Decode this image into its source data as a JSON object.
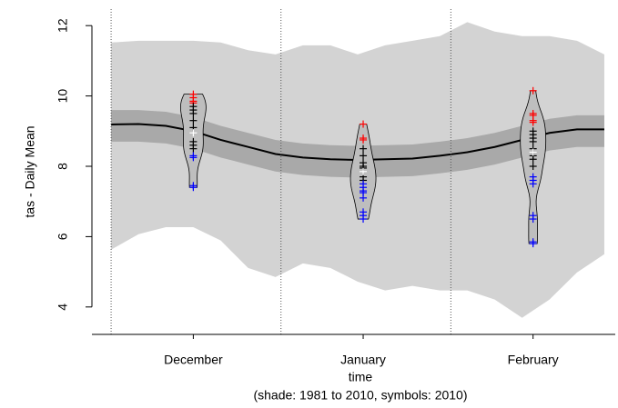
{
  "chart_data": {
    "type": "ensemble",
    "ylabel": "tas - Daily Mean",
    "xlabel": "time",
    "subtitle": "(shade: 1981 to 2010, symbols: 2010)",
    "xlim": [
      -2.5,
      93
    ],
    "ylim": [
      3.22,
      12.47
    ],
    "yticks": [
      4,
      6,
      8,
      10,
      12
    ],
    "xticks": [
      {
        "value": 16,
        "label": "December"
      },
      {
        "value": 47,
        "label": "January"
      },
      {
        "value": 78,
        "label": "February"
      }
    ],
    "separators": [
      1,
      32,
      63
    ],
    "x": [
      1,
      6,
      11,
      16,
      21,
      26,
      31,
      36,
      41,
      46,
      51,
      56,
      61,
      66,
      71,
      76,
      81,
      86,
      91
    ],
    "outer_band": {
      "color": "#d3d3d3",
      "upper": [
        11.52,
        11.57,
        11.57,
        11.57,
        11.52,
        11.3,
        11.18,
        11.44,
        11.44,
        11.18,
        11.44,
        11.57,
        11.7,
        12.1,
        11.83,
        11.7,
        11.7,
        11.57,
        11.18
      ],
      "lower": [
        5.63,
        6.07,
        6.27,
        6.27,
        5.89,
        5.11,
        4.85,
        5.24,
        5.11,
        4.72,
        4.47,
        4.6,
        4.47,
        4.47,
        4.21,
        3.69,
        4.21,
        4.98,
        5.5
      ]
    },
    "inner_band": {
      "color": "#a9a9a9",
      "upper": [
        9.6,
        9.6,
        9.55,
        9.4,
        9.15,
        8.95,
        8.75,
        8.65,
        8.6,
        8.58,
        8.6,
        8.62,
        8.7,
        8.8,
        8.95,
        9.15,
        9.35,
        9.45,
        9.45
      ],
      "lower": [
        8.7,
        8.7,
        8.65,
        8.5,
        8.25,
        8.05,
        7.85,
        7.75,
        7.7,
        7.68,
        7.7,
        7.72,
        7.8,
        7.9,
        8.05,
        8.25,
        8.45,
        8.55,
        8.55
      ]
    },
    "mean": {
      "color": "#000000",
      "values": [
        9.19,
        9.2,
        9.15,
        9.0,
        8.75,
        8.55,
        8.35,
        8.25,
        8.2,
        8.18,
        8.2,
        8.22,
        8.3,
        8.4,
        8.55,
        8.75,
        8.95,
        9.05,
        9.05
      ]
    },
    "violins": [
      {
        "x": 16,
        "groups": [
          {
            "color": "#ff0000",
            "values": [
              10.05,
              9.95,
              9.85,
              9.8
            ]
          },
          {
            "color": "#000000",
            "values": [
              9.7,
              9.6,
              9.5,
              9.3,
              9.1,
              8.7,
              8.6,
              8.5
            ]
          },
          {
            "color": "#ffffff",
            "values": [
              8.95
            ]
          },
          {
            "color": "#0000ff",
            "values": [
              8.3,
              8.25,
              7.45,
              7.4
            ]
          }
        ]
      },
      {
        "x": 47,
        "groups": [
          {
            "color": "#ff0000",
            "values": [
              9.2,
              8.8,
              8.75
            ]
          },
          {
            "color": "#000000",
            "values": [
              8.5,
              8.3,
              8.1,
              8.0,
              7.95,
              7.7,
              7.6
            ]
          },
          {
            "color": "#ffffff",
            "values": [
              7.85
            ]
          },
          {
            "color": "#0000ff",
            "values": [
              7.5,
              7.4,
              7.3,
              7.25,
              7.1,
              6.7,
              6.6,
              6.5
            ]
          }
        ]
      },
      {
        "x": 78,
        "groups": [
          {
            "color": "#ff0000",
            "values": [
              10.15,
              9.5,
              9.45,
              9.3,
              9.25
            ]
          },
          {
            "color": "#000000",
            "values": [
              9.0,
              8.9,
              8.8,
              8.7,
              8.5,
              8.3,
              8.2,
              8.0
            ]
          },
          {
            "color": "#ffffff",
            "values": [
              8.4
            ]
          },
          {
            "color": "#0000ff",
            "values": [
              7.7,
              7.6,
              7.5,
              6.6,
              6.5,
              5.85,
              5.8
            ]
          }
        ]
      }
    ]
  }
}
